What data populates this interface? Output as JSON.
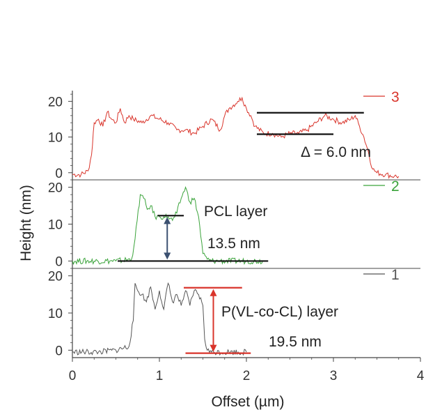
{
  "chart_data": {
    "type": "line",
    "xlabel": "Offset (µm)",
    "ylabel": "Height (nm)",
    "xlim": [
      0,
      4
    ],
    "x_ticks": [
      "0",
      "1",
      "2",
      "3",
      "4"
    ],
    "y_ticks": [
      "0",
      "10",
      "20"
    ],
    "panels": [
      {
        "legend": "3",
        "color": "#d9342b",
        "ylim": [
          -2,
          23
        ],
        "x": [
          0.0,
          0.1,
          0.18,
          0.22,
          0.25,
          0.3,
          0.35,
          0.4,
          0.45,
          0.5,
          0.55,
          0.6,
          0.65,
          0.7,
          0.8,
          0.9,
          1.0,
          1.1,
          1.2,
          1.3,
          1.4,
          1.5,
          1.6,
          1.7,
          1.75,
          1.8,
          1.9,
          1.95,
          2.0,
          2.05,
          2.1,
          2.2,
          2.3,
          2.4,
          2.5,
          2.6,
          2.7,
          2.8,
          2.9,
          3.0,
          3.1,
          3.2,
          3.25,
          3.3,
          3.35,
          3.4,
          3.45,
          3.5,
          3.6,
          3.7,
          3.75
        ],
        "y": [
          -0.5,
          -0.5,
          0.5,
          5,
          14,
          15,
          13,
          17,
          15,
          14,
          18,
          14,
          16,
          15,
          14,
          16,
          15,
          14,
          12,
          12,
          11,
          13,
          15,
          12,
          16,
          18,
          20,
          21,
          18,
          16,
          13,
          11,
          11,
          10,
          11,
          11,
          12,
          14,
          16,
          15,
          14,
          15,
          16,
          13,
          10,
          6,
          1,
          0,
          -0.5,
          -1,
          -1
        ]
      },
      {
        "legend": "2",
        "color": "#3aa33a",
        "ylim": [
          -2,
          22
        ],
        "x": [
          0.0,
          0.5,
          0.68,
          0.72,
          0.78,
          0.82,
          0.86,
          0.9,
          0.95,
          1.0,
          1.05,
          1.1,
          1.15,
          1.2,
          1.25,
          1.3,
          1.35,
          1.4,
          1.45,
          1.5,
          1.55,
          1.6,
          1.7,
          2.0,
          2.2
        ],
        "y": [
          0,
          0,
          0.5,
          6,
          18,
          17,
          14,
          15,
          12,
          12,
          12,
          12,
          11,
          13,
          17,
          20,
          16,
          17,
          12,
          2,
          0.5,
          0,
          0,
          0,
          0
        ]
      },
      {
        "legend": "1",
        "color": "#555555",
        "ylim": [
          -2,
          22
        ],
        "x": [
          0.0,
          0.3,
          0.5,
          0.65,
          0.7,
          0.72,
          0.75,
          0.8,
          0.85,
          0.9,
          0.95,
          1.0,
          1.05,
          1.1,
          1.15,
          1.2,
          1.25,
          1.3,
          1.35,
          1.4,
          1.45,
          1.5,
          1.52,
          1.55,
          1.6,
          1.8,
          2.0
        ],
        "y": [
          -0.5,
          -0.5,
          0,
          1,
          8,
          18,
          16,
          15,
          13,
          17,
          11,
          16,
          11,
          18,
          13,
          15,
          12,
          16,
          12,
          16,
          15,
          12,
          3,
          0,
          -0.5,
          -0.5,
          -0.5
        ]
      }
    ],
    "annotations": [
      {
        "text": "Δ = 6.0 nm"
      },
      {
        "text": "PCL layer"
      },
      {
        "text": "13.5 nm"
      },
      {
        "text": "P(VL-co-CL) layer"
      },
      {
        "text": "19.5 nm"
      }
    ]
  }
}
